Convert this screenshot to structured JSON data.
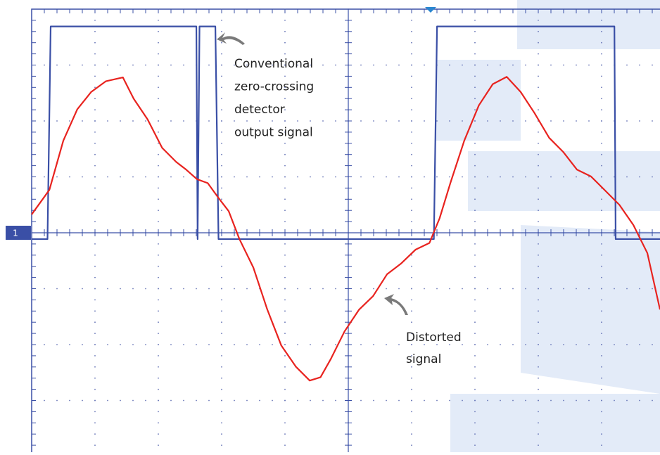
{
  "chart_data": {
    "type": "line",
    "channel_marker": "1",
    "annotations": [
      [
        "Conventional",
        "zero-crossing",
        "detector",
        "output signal"
      ],
      [
        "Distorted",
        "signal"
      ]
    ],
    "xlim": [
      0,
      9.92
    ],
    "ylim": [
      -3.92,
      4.0
    ],
    "series": [
      {
        "color": "#3a4fa6",
        "x": [
          0,
          0.25,
          0.3,
          2.6,
          2.62,
          2.65,
          2.9,
          2.95,
          6.35,
          6.4,
          9.2,
          9.22,
          9.92
        ],
        "values": [
          -0.11,
          -0.11,
          3.69,
          3.69,
          -0.11,
          3.69,
          3.69,
          -0.11,
          -0.11,
          3.69,
          3.69,
          -0.11,
          -0.11
        ]
      },
      {
        "color": "#e8231f",
        "x": [
          0,
          0.28,
          0.5,
          0.72,
          0.94,
          1.17,
          1.44,
          1.61,
          1.83,
          2.06,
          2.28,
          2.44,
          2.61,
          2.78,
          2.94,
          3.11,
          3.28,
          3.5,
          3.72,
          3.94,
          4.17,
          4.39,
          4.56,
          4.72,
          4.94,
          5.17,
          5.39,
          5.61,
          5.83,
          6.06,
          6.28,
          6.44,
          6.61,
          6.83,
          7.06,
          7.28,
          7.5,
          7.72,
          7.94,
          8.17,
          8.39,
          8.61,
          8.83,
          9.06,
          9.28,
          9.5,
          9.72,
          9.92
        ],
        "values": [
          0.33,
          0.77,
          1.65,
          2.21,
          2.52,
          2.71,
          2.78,
          2.4,
          2.03,
          1.52,
          1.27,
          1.13,
          0.96,
          0.89,
          0.64,
          0.39,
          -0.11,
          -0.62,
          -1.37,
          -2.01,
          -2.39,
          -2.64,
          -2.58,
          -2.26,
          -1.76,
          -1.37,
          -1.13,
          -0.74,
          -0.55,
          -0.3,
          -0.18,
          0.26,
          0.89,
          1.65,
          2.28,
          2.66,
          2.79,
          2.52,
          2.14,
          1.7,
          1.45,
          1.13,
          1.01,
          0.75,
          0.5,
          0.14,
          -0.36,
          -1.37
        ]
      }
    ]
  }
}
